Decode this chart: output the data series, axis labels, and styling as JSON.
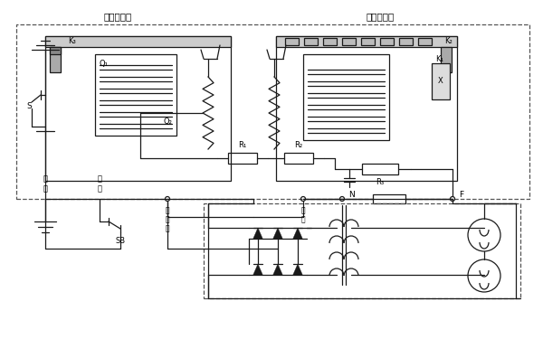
{
  "label_cichang_jidianqi": "磁場繼電器",
  "label_dianya_tiaojieqi": "電壓調節器",
  "label_dianchi": "電\n池",
  "label_anniu": "按\n鈕",
  "label_zhongxingdian": "中\n性\n點",
  "label_cichang": "磁\n場",
  "label_K3": "K₃",
  "label_Q1": "Q₁",
  "label_Q2": "Q₂",
  "label_K2": "K₂",
  "label_K1": "K₁",
  "label_X": "X",
  "label_R1": "R₁",
  "label_R2": "R₂",
  "label_R3": "R₃",
  "label_S": "S",
  "label_SB": "SB",
  "label_N": "N",
  "label_F": "F",
  "bg_color": "#ffffff",
  "line_color": "#1a1a1a"
}
